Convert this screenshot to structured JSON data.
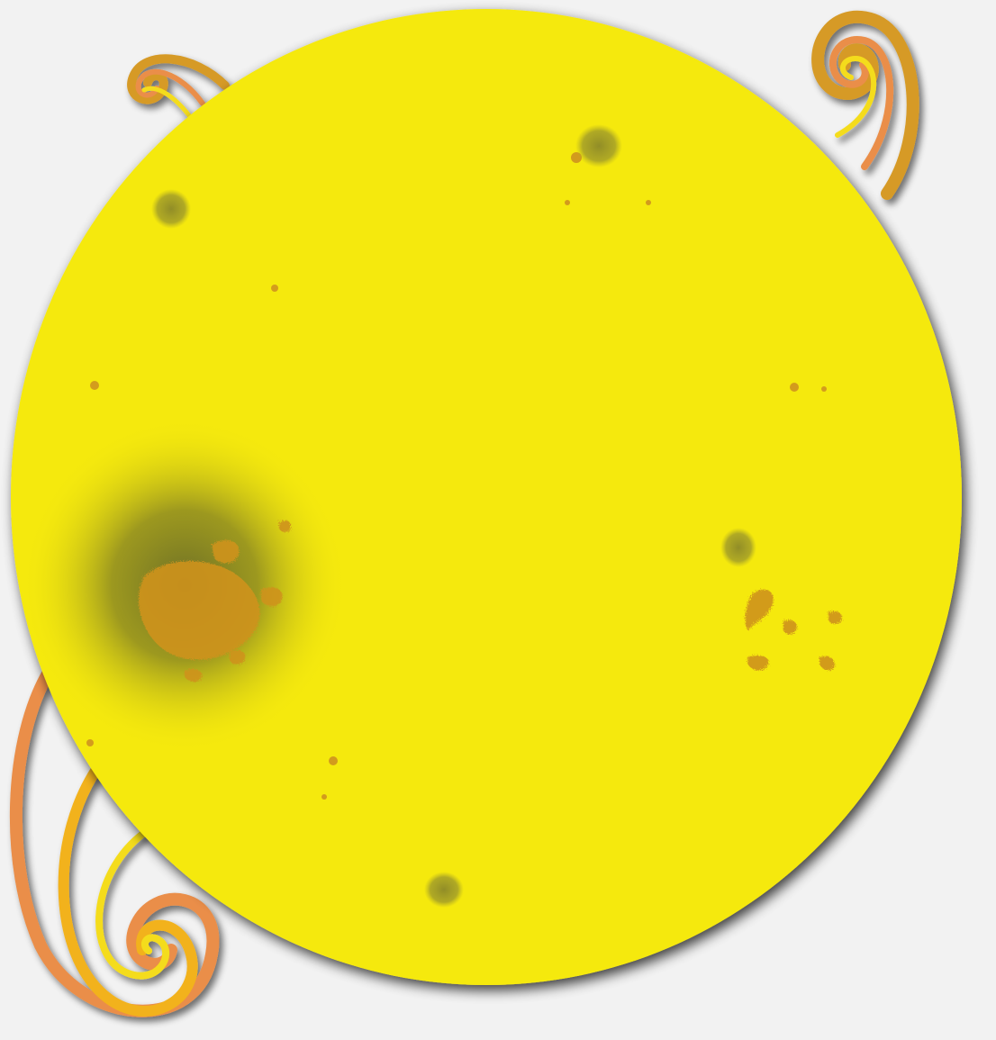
{
  "colors": {
    "background": "#f2f2f2",
    "sun": "#f5e910",
    "sun_edge": "#e9dc10",
    "shadow": "#6f6f6f",
    "spot_orange": "#cf931f",
    "spot_olive": "#9a9426",
    "dark_blotch": "#707226",
    "swirl_orange": "#ea8e48",
    "swirl_gold": "#d69a28",
    "swirl_yellow": "#f4dc1c",
    "swirl_amber": "#f2b21b"
  },
  "icons": {
    "sun": "sun-icon",
    "swirls": "swirl-icon"
  }
}
